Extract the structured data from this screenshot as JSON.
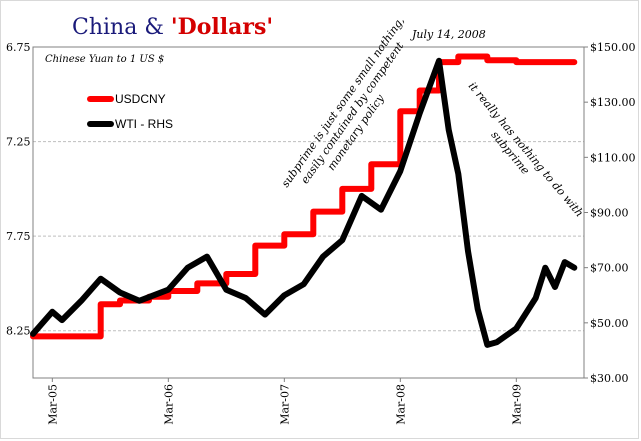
{
  "chart_data": {
    "type": "line",
    "title": {
      "prefix": "China & ",
      "highlight": "'Dollars'"
    },
    "left_axis": {
      "label": "Chinese Yuan to 1 US $",
      "range": [
        8.5,
        6.75
      ],
      "inverted": true,
      "ticks": [
        "6.75",
        "7.25",
        "7.75",
        "8.25"
      ]
    },
    "right_axis": {
      "range": [
        30,
        150
      ],
      "ticks": [
        "$150.00",
        "$130.00",
        "$110.00",
        "$90.00",
        "$70.00",
        "$50.00",
        "$30.00"
      ]
    },
    "x_ticks": [
      "Mar-05",
      "Mar-06",
      "Mar-07",
      "Mar-08",
      "Mar-09"
    ],
    "gridlines": true,
    "legend_position": "top-left",
    "series": [
      {
        "name": "USDCNY",
        "axis": "left",
        "color": "#ff0000",
        "x": [
          "2005-01",
          "2005-03",
          "2005-05",
          "2005-07",
          "2005-08",
          "2005-10",
          "2006-01",
          "2006-03",
          "2006-06",
          "2006-09",
          "2006-12",
          "2007-03",
          "2007-06",
          "2007-09",
          "2007-12",
          "2008-03",
          "2008-05",
          "2008-07",
          "2008-09",
          "2008-12",
          "2009-03",
          "2009-06",
          "2009-09"
        ],
        "values": [
          8.28,
          8.28,
          8.28,
          8.28,
          8.11,
          8.09,
          8.07,
          8.04,
          8.0,
          7.95,
          7.8,
          7.74,
          7.62,
          7.5,
          7.37,
          7.09,
          6.98,
          6.83,
          6.8,
          6.82,
          6.83,
          6.83,
          6.83
        ]
      },
      {
        "name": "WTI - RHS",
        "axis": "right",
        "color": "#000000",
        "x": [
          "2005-01",
          "2005-03",
          "2005-04",
          "2005-06",
          "2005-08",
          "2005-10",
          "2005-12",
          "2006-03",
          "2006-05",
          "2006-07",
          "2006-09",
          "2006-11",
          "2007-01",
          "2007-03",
          "2007-05",
          "2007-07",
          "2007-09",
          "2007-11",
          "2008-01",
          "2008-03",
          "2008-05",
          "2008-07",
          "2008-08",
          "2008-09",
          "2008-10",
          "2008-11",
          "2008-12",
          "2009-01",
          "2009-03",
          "2009-05",
          "2009-06",
          "2009-07",
          "2009-08",
          "2009-09"
        ],
        "values": [
          46,
          54,
          51,
          58,
          66,
          61,
          58,
          62,
          70,
          74,
          62,
          59,
          53,
          60,
          64,
          74,
          80,
          96,
          91,
          105,
          126,
          145,
          120,
          104,
          76,
          55,
          42,
          43,
          48,
          59,
          70,
          63,
          72,
          70
        ]
      }
    ],
    "annotations": [
      {
        "text": "July 14, 2008"
      },
      {
        "text": "subprime is just some small nothing,"
      },
      {
        "text": "easily contained by competent"
      },
      {
        "text": "monetary policy"
      },
      {
        "text": "it really has nothing to do with"
      },
      {
        "text": "subprime"
      }
    ]
  }
}
